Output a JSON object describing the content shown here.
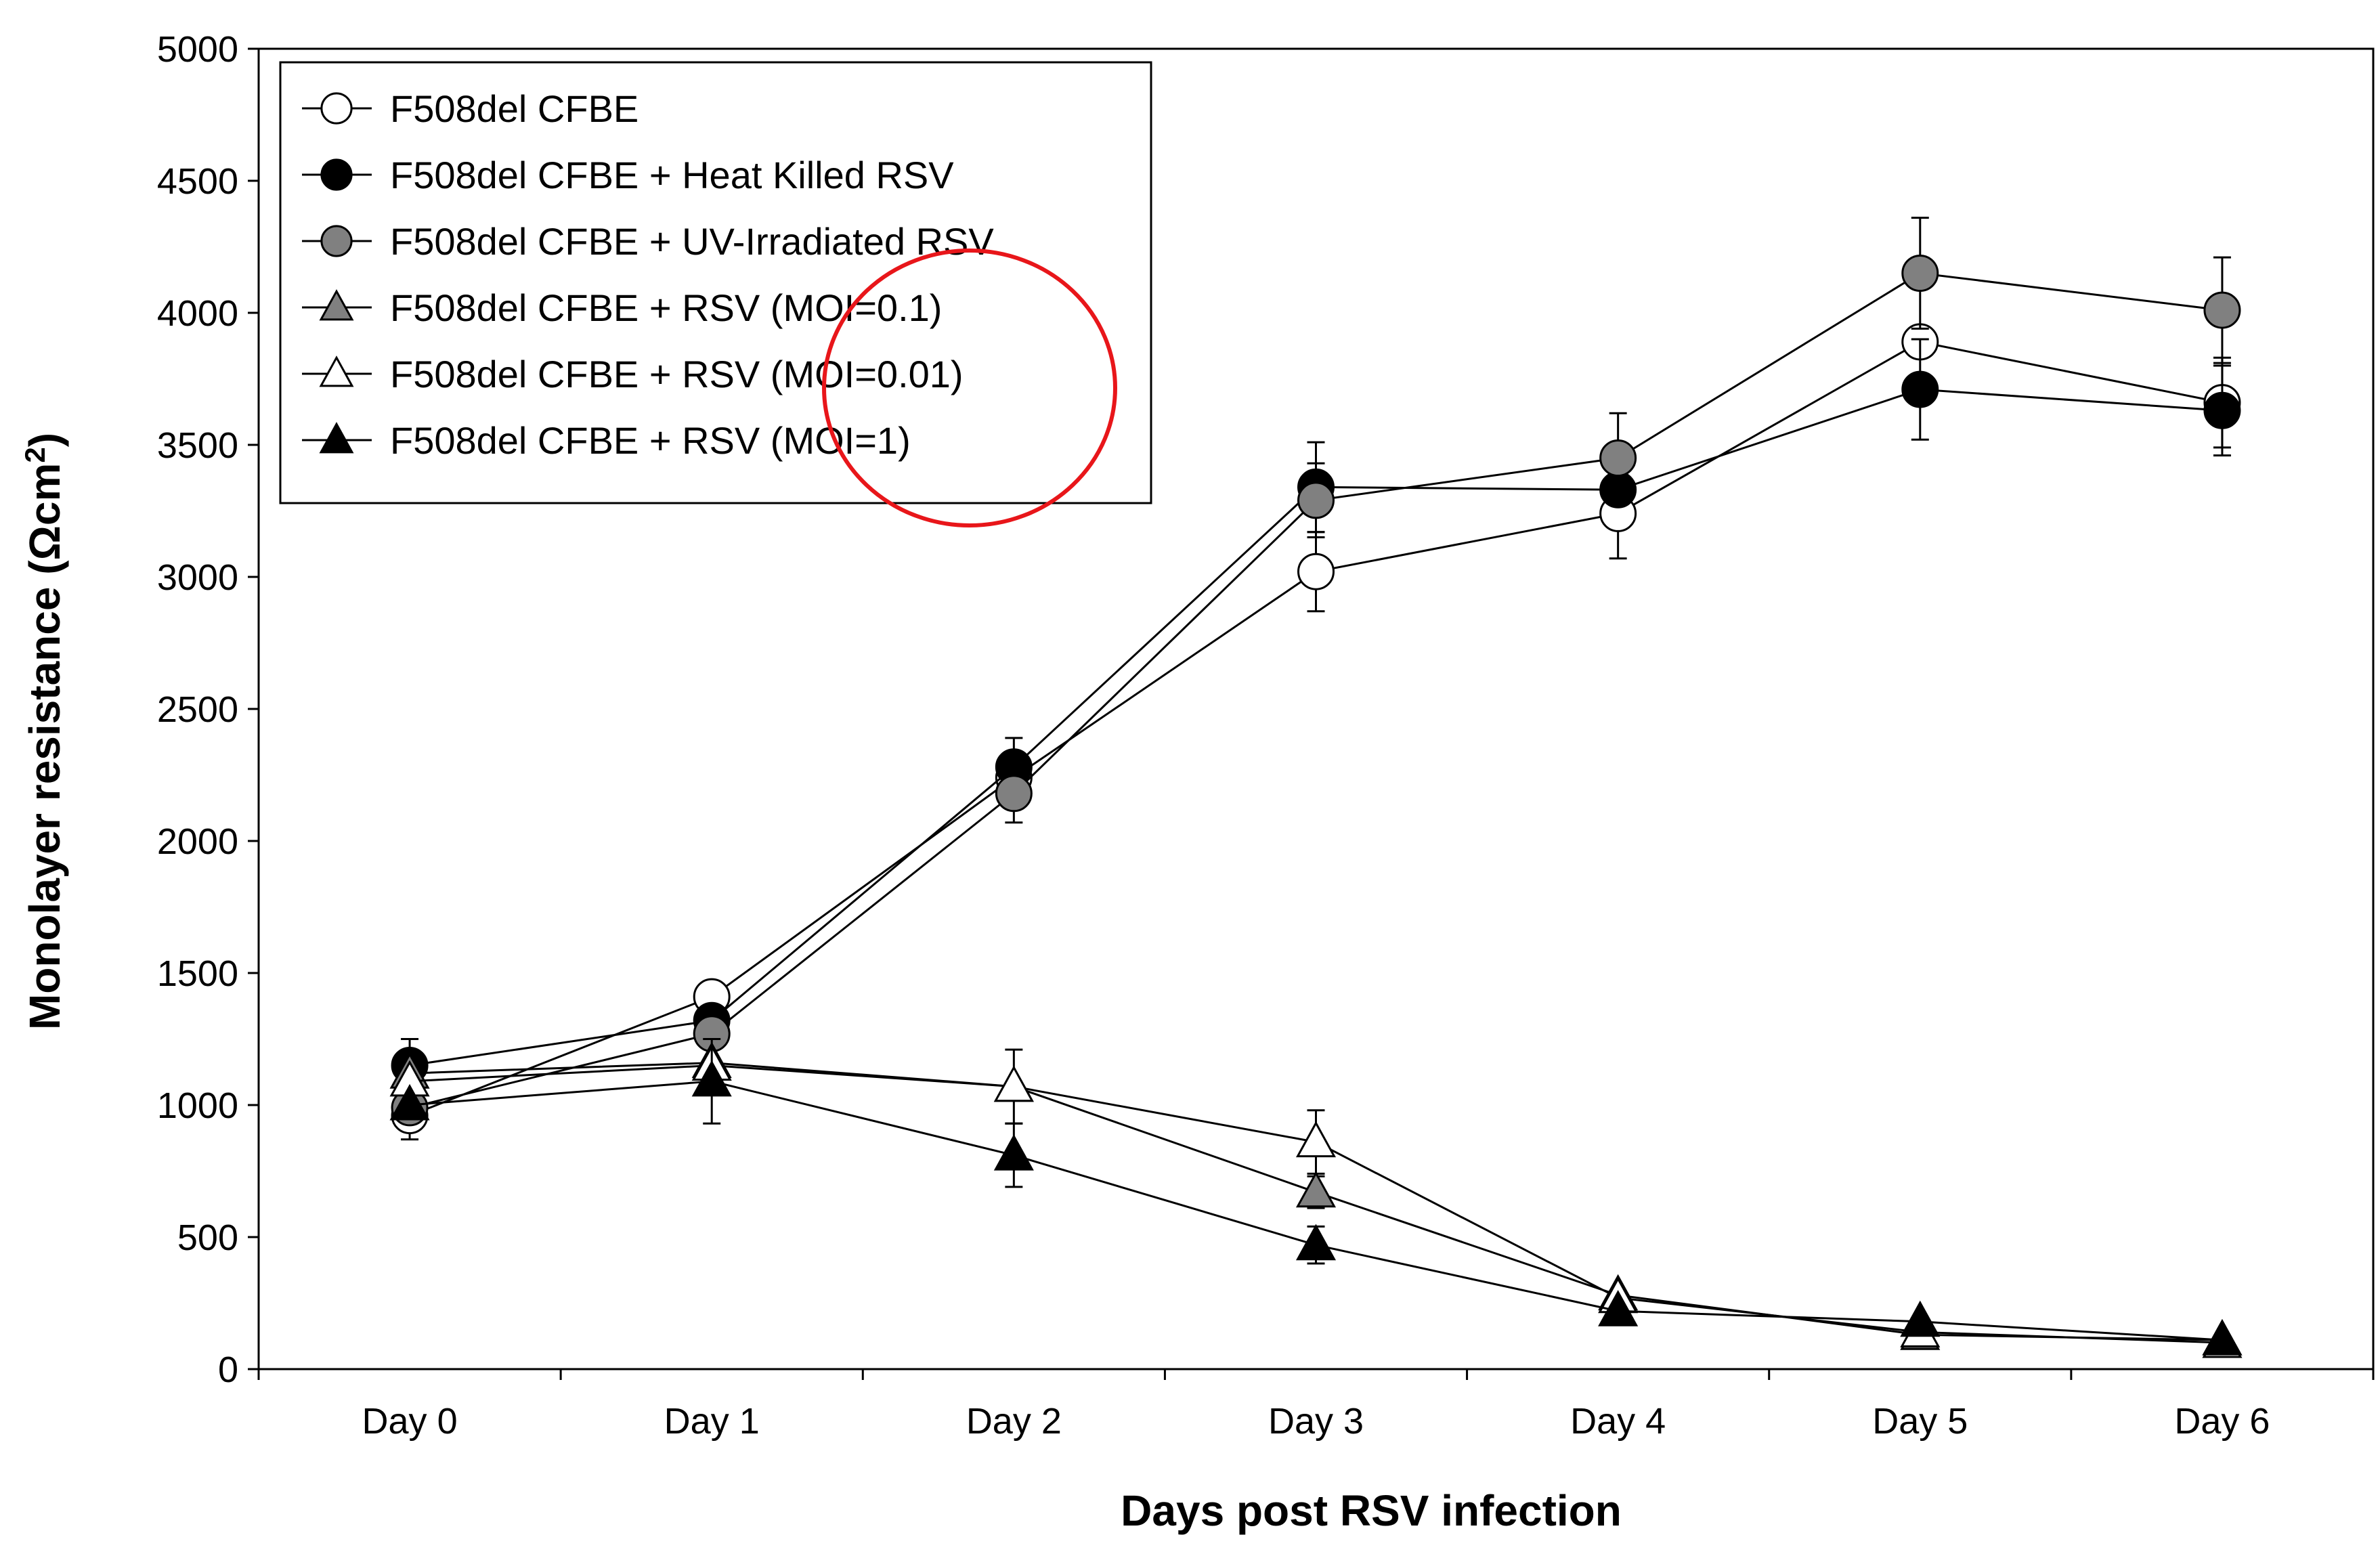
{
  "chart_data": {
    "type": "line",
    "title": "",
    "xlabel": "Days post RSV infection",
    "ylabel": "Monolayer resistance (Ωcm²)",
    "ylabel_main": "Monolayer resistance (Ωcm",
    "ylabel_sup": "2",
    "ylabel_end": ")",
    "ylim": [
      0,
      5000
    ],
    "yticks": [
      "0",
      "500",
      "1000",
      "1500",
      "2000",
      "2500",
      "3000",
      "3500",
      "4000",
      "4500",
      "5000"
    ],
    "categories": [
      "Day 0",
      "Day 1",
      "Day 2",
      "Day 3",
      "Day 4",
      "Day 5",
      "Day 6"
    ],
    "grid": false,
    "legend_position": "top-left",
    "series": [
      {
        "name": "F508del CFBE",
        "marker": "circle",
        "fill": "#ffffff",
        "values": [
          960,
          1410,
          2240,
          3020,
          3240,
          3890,
          3660
        ],
        "errors": [
          90,
          0,
          0,
          150,
          170,
          0,
          170
        ]
      },
      {
        "name": "F508del CFBE + Heat Killed RSV",
        "marker": "circle",
        "fill": "#000000",
        "values": [
          1150,
          1320,
          2280,
          3340,
          3330,
          3710,
          3630
        ],
        "errors": [
          100,
          0,
          110,
          170,
          0,
          190,
          170
        ]
      },
      {
        "name": "F508del CFBE + UV-Irradiated RSV",
        "marker": "circle",
        "fill": "#808080",
        "values": [
          990,
          1270,
          2180,
          3290,
          3450,
          4150,
          4010
        ],
        "errors": [
          0,
          0,
          110,
          140,
          170,
          210,
          200
        ]
      },
      {
        "name": "F508del CFBE + RSV (MOI=0.1)",
        "marker": "triangle",
        "fill": "#808080",
        "values": [
          1120,
          1160,
          1070,
          670,
          280,
          130,
          110
        ],
        "errors": [
          0,
          0,
          0,
          60,
          0,
          0,
          0
        ]
      },
      {
        "name": "F508del CFBE + RSV (MOI=0.01)",
        "marker": "triangle",
        "fill": "#ffffff",
        "values": [
          1090,
          1150,
          1070,
          860,
          270,
          140,
          100
        ],
        "errors": [
          0,
          0,
          140,
          120,
          0,
          0,
          0
        ]
      },
      {
        "name": "F508del CFBE + RSV (MOI=1)",
        "marker": "triangle",
        "fill": "#000000",
        "values": [
          1000,
          1090,
          810,
          470,
          220,
          180,
          110
        ],
        "errors": [
          0,
          160,
          120,
          70,
          0,
          0,
          0
        ]
      }
    ],
    "annotations": [
      {
        "type": "ellipse",
        "color": "#e8161a",
        "around": "legend entries RSV (MOI=0.1), RSV (MOI=0.01), RSV (MOI=1)"
      }
    ]
  }
}
